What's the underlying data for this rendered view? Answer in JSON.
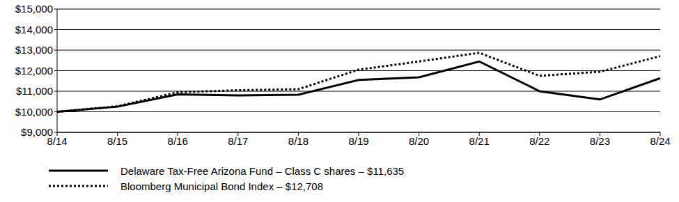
{
  "chart_data": {
    "type": "line",
    "categories": [
      "8/14",
      "8/15",
      "8/16",
      "8/17",
      "8/18",
      "8/19",
      "8/20",
      "8/21",
      "8/22",
      "8/23",
      "8/24"
    ],
    "series": [
      {
        "name": "Delaware Tax-Free Arizona Fund – Class C shares – $11,635",
        "color": "#000000",
        "line_style": "solid",
        "values": [
          10000,
          10250,
          10850,
          10800,
          10830,
          11550,
          11680,
          12450,
          11000,
          10600,
          11635
        ]
      },
      {
        "name": "Bloomberg Municipal Bond Index – $12,708",
        "color": "#000000",
        "line_style": "dotted",
        "values": [
          10000,
          10270,
          10950,
          11050,
          11100,
          12050,
          12450,
          12870,
          11750,
          11950,
          12708
        ]
      }
    ],
    "ylim": [
      9000,
      15000
    ],
    "yticks": [
      {
        "value": 9000,
        "label": "$9,000"
      },
      {
        "value": 10000,
        "label": "$10,000"
      },
      {
        "value": 11000,
        "label": "$11,000"
      },
      {
        "value": 12000,
        "label": "$12,000"
      },
      {
        "value": 13000,
        "label": "$13,000"
      },
      {
        "value": 14000,
        "label": "$14,000"
      },
      {
        "value": 15000,
        "label": "$15,000"
      }
    ],
    "grid": true
  }
}
